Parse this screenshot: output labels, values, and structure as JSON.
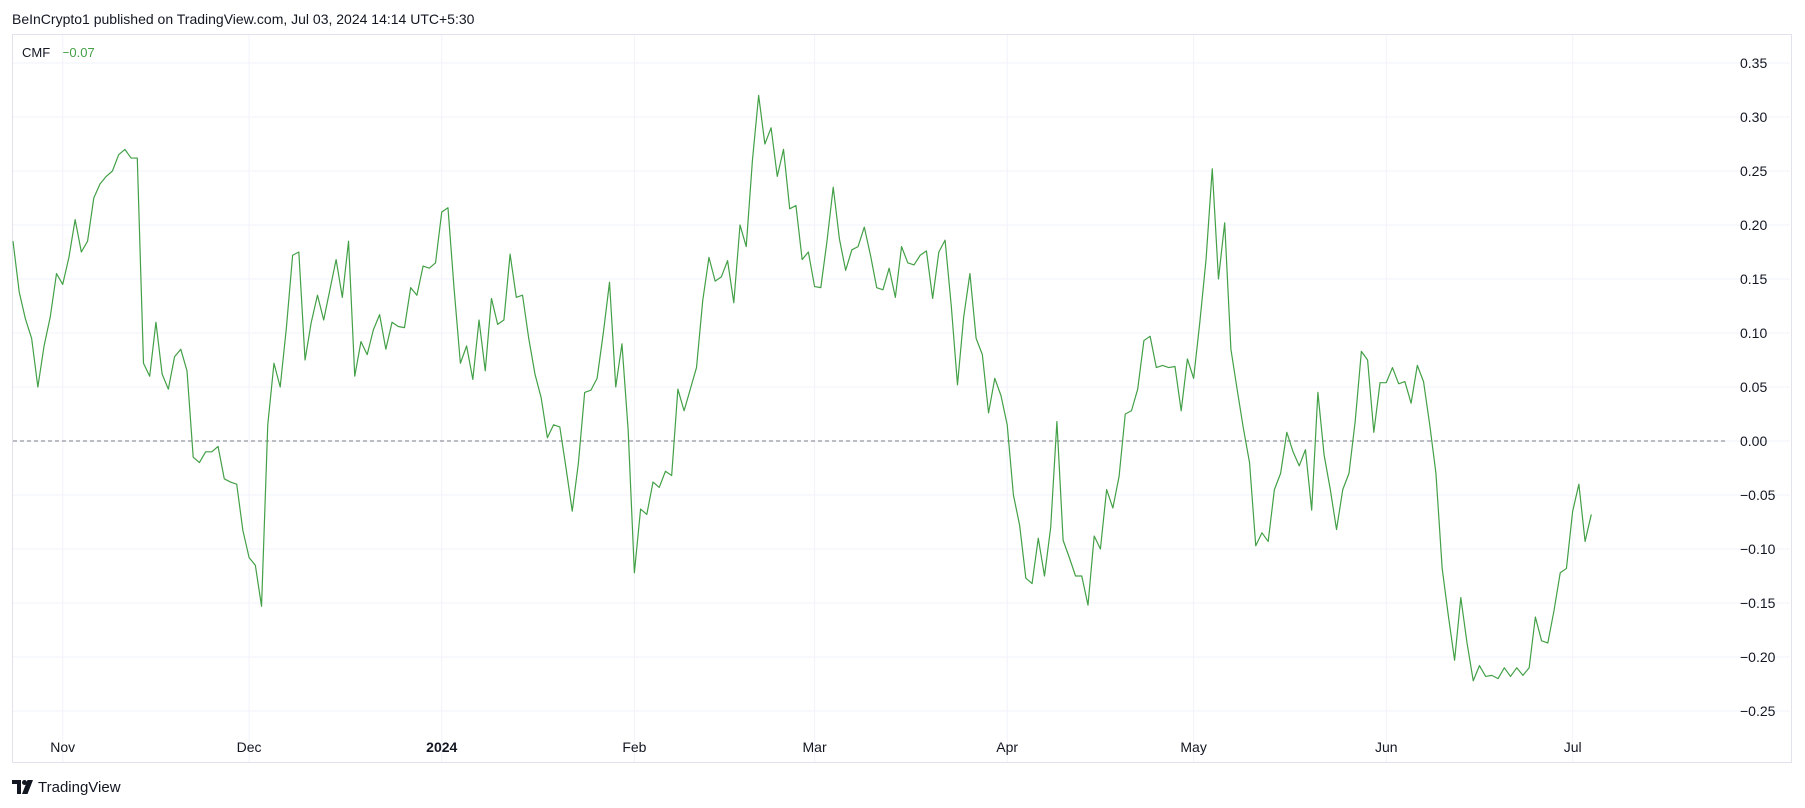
{
  "header": {
    "text": "BeInCrypto1 published on TradingView.com, Jul 03, 2024 14:14 UTC+5:30"
  },
  "legend": {
    "name": "CMF",
    "value": "−0.07",
    "color": "#43a047"
  },
  "footer": {
    "brand": "TradingView",
    "logo_icon": "tradingview-logo-icon"
  },
  "chart_data": {
    "type": "line",
    "ylim": [
      -0.275,
      0.375
    ],
    "y_ticks": [
      "0.35",
      "0.30",
      "0.25",
      "0.20",
      "0.15",
      "0.10",
      "0.05",
      "0.00",
      "−0.05",
      "−0.10",
      "−0.15",
      "−0.20",
      "−0.25"
    ],
    "y_tick_values": [
      0.35,
      0.3,
      0.25,
      0.2,
      0.15,
      0.1,
      0.05,
      0.0,
      -0.05,
      -0.1,
      -0.15,
      -0.2,
      -0.25
    ],
    "x_ticks": [
      {
        "label": "Nov",
        "date": "2023-11-01",
        "bold": false
      },
      {
        "label": "Dec",
        "date": "2023-12-01",
        "bold": false
      },
      {
        "label": "2024",
        "date": "2024-01-01",
        "bold": true
      },
      {
        "label": "Feb",
        "date": "2024-02-01",
        "bold": false
      },
      {
        "label": "Mar",
        "date": "2024-03-01",
        "bold": false
      },
      {
        "label": "Apr",
        "date": "2024-04-01",
        "bold": false
      },
      {
        "label": "May",
        "date": "2024-05-01",
        "bold": false
      },
      {
        "label": "Jun",
        "date": "2024-06-01",
        "bold": false
      },
      {
        "label": "Jul",
        "date": "2024-07-01",
        "bold": false
      }
    ],
    "xlim": [
      "2023-10-24",
      "2024-07-26"
    ],
    "baseline": 0,
    "grid": true,
    "series": [
      {
        "color": "#43a047",
        "points": [
          [
            "2023-10-24",
            0.185
          ],
          [
            "2023-10-25",
            0.138
          ],
          [
            "2023-10-26",
            0.113
          ],
          [
            "2023-10-27",
            0.095
          ],
          [
            "2023-10-28",
            0.05
          ],
          [
            "2023-10-29",
            0.088
          ],
          [
            "2023-10-30",
            0.115
          ],
          [
            "2023-10-31",
            0.155
          ],
          [
            "2023-11-01",
            0.145
          ],
          [
            "2023-11-02",
            0.17
          ],
          [
            "2023-11-03",
            0.205
          ],
          [
            "2023-11-04",
            0.175
          ],
          [
            "2023-11-05",
            0.185
          ],
          [
            "2023-11-06",
            0.225
          ],
          [
            "2023-11-07",
            0.238
          ],
          [
            "2023-11-08",
            0.245
          ],
          [
            "2023-11-09",
            0.25
          ],
          [
            "2023-11-10",
            0.265
          ],
          [
            "2023-11-11",
            0.27
          ],
          [
            "2023-11-12",
            0.262
          ],
          [
            "2023-11-13",
            0.262
          ],
          [
            "2023-11-14",
            0.072
          ],
          [
            "2023-11-15",
            0.06
          ],
          [
            "2023-11-16",
            0.11
          ],
          [
            "2023-11-17",
            0.062
          ],
          [
            "2023-11-18",
            0.048
          ],
          [
            "2023-11-19",
            0.078
          ],
          [
            "2023-11-20",
            0.085
          ],
          [
            "2023-11-21",
            0.065
          ],
          [
            "2023-11-22",
            -0.015
          ],
          [
            "2023-11-23",
            -0.02
          ],
          [
            "2023-11-24",
            -0.01
          ],
          [
            "2023-11-25",
            -0.01
          ],
          [
            "2023-11-26",
            -0.005
          ],
          [
            "2023-11-27",
            -0.035
          ],
          [
            "2023-11-28",
            -0.038
          ],
          [
            "2023-11-29",
            -0.04
          ],
          [
            "2023-11-30",
            -0.083
          ],
          [
            "2023-12-01",
            -0.108
          ],
          [
            "2023-12-02",
            -0.115
          ],
          [
            "2023-12-03",
            -0.153
          ],
          [
            "2023-12-04",
            0.015
          ],
          [
            "2023-12-05",
            0.072
          ],
          [
            "2023-12-06",
            0.05
          ],
          [
            "2023-12-07",
            0.105
          ],
          [
            "2023-12-08",
            0.172
          ],
          [
            "2023-12-09",
            0.175
          ],
          [
            "2023-12-10",
            0.075
          ],
          [
            "2023-12-11",
            0.11
          ],
          [
            "2023-12-12",
            0.135
          ],
          [
            "2023-12-13",
            0.112
          ],
          [
            "2023-12-14",
            0.14
          ],
          [
            "2023-12-15",
            0.168
          ],
          [
            "2023-12-16",
            0.133
          ],
          [
            "2023-12-17",
            0.185
          ],
          [
            "2023-12-18",
            0.06
          ],
          [
            "2023-12-19",
            0.092
          ],
          [
            "2023-12-20",
            0.08
          ],
          [
            "2023-12-21",
            0.103
          ],
          [
            "2023-12-22",
            0.117
          ],
          [
            "2023-12-23",
            0.085
          ],
          [
            "2023-12-24",
            0.11
          ],
          [
            "2023-12-25",
            0.106
          ],
          [
            "2023-12-26",
            0.105
          ],
          [
            "2023-12-27",
            0.142
          ],
          [
            "2023-12-28",
            0.135
          ],
          [
            "2023-12-29",
            0.162
          ],
          [
            "2023-12-30",
            0.16
          ],
          [
            "2023-12-31",
            0.165
          ],
          [
            "2024-01-01",
            0.212
          ],
          [
            "2024-01-02",
            0.216
          ],
          [
            "2024-01-03",
            0.14
          ],
          [
            "2024-01-04",
            0.072
          ],
          [
            "2024-01-05",
            0.088
          ],
          [
            "2024-01-06",
            0.057
          ],
          [
            "2024-01-07",
            0.112
          ],
          [
            "2024-01-08",
            0.065
          ],
          [
            "2024-01-09",
            0.132
          ],
          [
            "2024-01-10",
            0.108
          ],
          [
            "2024-01-11",
            0.112
          ],
          [
            "2024-01-12",
            0.173
          ],
          [
            "2024-01-13",
            0.133
          ],
          [
            "2024-01-14",
            0.135
          ],
          [
            "2024-01-15",
            0.095
          ],
          [
            "2024-01-16",
            0.062
          ],
          [
            "2024-01-17",
            0.04
          ],
          [
            "2024-01-18",
            0.003
          ],
          [
            "2024-01-19",
            0.015
          ],
          [
            "2024-01-20",
            0.013
          ],
          [
            "2024-01-21",
            -0.025
          ],
          [
            "2024-01-22",
            -0.065
          ],
          [
            "2024-01-23",
            -0.02
          ],
          [
            "2024-01-24",
            0.045
          ],
          [
            "2024-01-25",
            0.047
          ],
          [
            "2024-01-26",
            0.058
          ],
          [
            "2024-01-27",
            0.1
          ],
          [
            "2024-01-28",
            0.147
          ],
          [
            "2024-01-29",
            0.05
          ],
          [
            "2024-01-30",
            0.09
          ],
          [
            "2024-01-31",
            0.01
          ],
          [
            "2024-02-01",
            -0.122
          ],
          [
            "2024-02-02",
            -0.063
          ],
          [
            "2024-02-03",
            -0.068
          ],
          [
            "2024-02-04",
            -0.038
          ],
          [
            "2024-02-05",
            -0.043
          ],
          [
            "2024-02-06",
            -0.028
          ],
          [
            "2024-02-07",
            -0.032
          ],
          [
            "2024-02-08",
            0.048
          ],
          [
            "2024-02-09",
            0.028
          ],
          [
            "2024-02-10",
            0.048
          ],
          [
            "2024-02-11",
            0.068
          ],
          [
            "2024-02-12",
            0.13
          ],
          [
            "2024-02-13",
            0.17
          ],
          [
            "2024-02-14",
            0.148
          ],
          [
            "2024-02-15",
            0.152
          ],
          [
            "2024-02-16",
            0.167
          ],
          [
            "2024-02-17",
            0.128
          ],
          [
            "2024-02-18",
            0.2
          ],
          [
            "2024-02-19",
            0.18
          ],
          [
            "2024-02-20",
            0.26
          ],
          [
            "2024-02-21",
            0.32
          ],
          [
            "2024-02-22",
            0.275
          ],
          [
            "2024-02-23",
            0.29
          ],
          [
            "2024-02-24",
            0.245
          ],
          [
            "2024-02-25",
            0.27
          ],
          [
            "2024-02-26",
            0.215
          ],
          [
            "2024-02-27",
            0.218
          ],
          [
            "2024-02-28",
            0.168
          ],
          [
            "2024-02-29",
            0.175
          ],
          [
            "2024-03-01",
            0.143
          ],
          [
            "2024-03-02",
            0.142
          ],
          [
            "2024-03-03",
            0.185
          ],
          [
            "2024-03-04",
            0.235
          ],
          [
            "2024-03-05",
            0.187
          ],
          [
            "2024-03-06",
            0.158
          ],
          [
            "2024-03-07",
            0.177
          ],
          [
            "2024-03-08",
            0.18
          ],
          [
            "2024-03-09",
            0.198
          ],
          [
            "2024-03-10",
            0.172
          ],
          [
            "2024-03-11",
            0.142
          ],
          [
            "2024-03-12",
            0.14
          ],
          [
            "2024-03-13",
            0.16
          ],
          [
            "2024-03-14",
            0.133
          ],
          [
            "2024-03-15",
            0.18
          ],
          [
            "2024-03-16",
            0.165
          ],
          [
            "2024-03-17",
            0.163
          ],
          [
            "2024-03-18",
            0.172
          ],
          [
            "2024-03-19",
            0.176
          ],
          [
            "2024-03-20",
            0.132
          ],
          [
            "2024-03-21",
            0.175
          ],
          [
            "2024-03-22",
            0.186
          ],
          [
            "2024-03-23",
            0.125
          ],
          [
            "2024-03-24",
            0.052
          ],
          [
            "2024-03-25",
            0.115
          ],
          [
            "2024-03-26",
            0.155
          ],
          [
            "2024-03-27",
            0.095
          ],
          [
            "2024-03-28",
            0.08
          ],
          [
            "2024-03-29",
            0.026
          ],
          [
            "2024-03-30",
            0.058
          ],
          [
            "2024-03-31",
            0.042
          ],
          [
            "2024-04-01",
            0.015
          ],
          [
            "2024-04-02",
            -0.05
          ],
          [
            "2024-04-03",
            -0.078
          ],
          [
            "2024-04-04",
            -0.127
          ],
          [
            "2024-04-05",
            -0.132
          ],
          [
            "2024-04-06",
            -0.09
          ],
          [
            "2024-04-07",
            -0.125
          ],
          [
            "2024-04-08",
            -0.08
          ],
          [
            "2024-04-09",
            0.018
          ],
          [
            "2024-04-10",
            -0.092
          ],
          [
            "2024-04-11",
            -0.108
          ],
          [
            "2024-04-12",
            -0.125
          ],
          [
            "2024-04-13",
            -0.125
          ],
          [
            "2024-04-14",
            -0.152
          ],
          [
            "2024-04-15",
            -0.088
          ],
          [
            "2024-04-16",
            -0.1
          ],
          [
            "2024-04-17",
            -0.045
          ],
          [
            "2024-04-18",
            -0.062
          ],
          [
            "2024-04-19",
            -0.033
          ],
          [
            "2024-04-20",
            0.025
          ],
          [
            "2024-04-21",
            0.028
          ],
          [
            "2024-04-22",
            0.048
          ],
          [
            "2024-04-23",
            0.093
          ],
          [
            "2024-04-24",
            0.097
          ],
          [
            "2024-04-25",
            0.068
          ],
          [
            "2024-04-26",
            0.07
          ],
          [
            "2024-04-27",
            0.068
          ],
          [
            "2024-04-28",
            0.069
          ],
          [
            "2024-04-29",
            0.028
          ],
          [
            "2024-04-30",
            0.076
          ],
          [
            "2024-05-01",
            0.058
          ],
          [
            "2024-05-02",
            0.11
          ],
          [
            "2024-05-03",
            0.168
          ],
          [
            "2024-05-04",
            0.252
          ],
          [
            "2024-05-05",
            0.15
          ],
          [
            "2024-05-06",
            0.202
          ],
          [
            "2024-05-07",
            0.085
          ],
          [
            "2024-05-08",
            0.048
          ],
          [
            "2024-05-09",
            0.012
          ],
          [
            "2024-05-10",
            -0.02
          ],
          [
            "2024-05-11",
            -0.097
          ],
          [
            "2024-05-12",
            -0.085
          ],
          [
            "2024-05-13",
            -0.093
          ],
          [
            "2024-05-14",
            -0.045
          ],
          [
            "2024-05-15",
            -0.03
          ],
          [
            "2024-05-16",
            0.008
          ],
          [
            "2024-05-17",
            -0.01
          ],
          [
            "2024-05-18",
            -0.023
          ],
          [
            "2024-05-19",
            -0.008
          ],
          [
            "2024-05-20",
            -0.064
          ],
          [
            "2024-05-21",
            0.045
          ],
          [
            "2024-05-22",
            -0.013
          ],
          [
            "2024-05-23",
            -0.045
          ],
          [
            "2024-05-24",
            -0.082
          ],
          [
            "2024-05-25",
            -0.045
          ],
          [
            "2024-05-26",
            -0.03
          ],
          [
            "2024-05-27",
            0.018
          ],
          [
            "2024-05-28",
            0.083
          ],
          [
            "2024-05-29",
            0.075
          ],
          [
            "2024-05-30",
            0.008
          ],
          [
            "2024-05-31",
            0.054
          ],
          [
            "2024-06-01",
            0.054
          ],
          [
            "2024-06-02",
            0.068
          ],
          [
            "2024-06-03",
            0.053
          ],
          [
            "2024-06-04",
            0.055
          ],
          [
            "2024-06-05",
            0.035
          ],
          [
            "2024-06-06",
            0.07
          ],
          [
            "2024-06-07",
            0.055
          ],
          [
            "2024-06-08",
            0.015
          ],
          [
            "2024-06-09",
            -0.03
          ],
          [
            "2024-06-10",
            -0.118
          ],
          [
            "2024-06-11",
            -0.162
          ],
          [
            "2024-06-12",
            -0.203
          ],
          [
            "2024-06-13",
            -0.145
          ],
          [
            "2024-06-14",
            -0.187
          ],
          [
            "2024-06-15",
            -0.222
          ],
          [
            "2024-06-16",
            -0.208
          ],
          [
            "2024-06-17",
            -0.218
          ],
          [
            "2024-06-18",
            -0.217
          ],
          [
            "2024-06-19",
            -0.22
          ],
          [
            "2024-06-20",
            -0.21
          ],
          [
            "2024-06-21",
            -0.218
          ],
          [
            "2024-06-22",
            -0.21
          ],
          [
            "2024-06-23",
            -0.217
          ],
          [
            "2024-06-24",
            -0.21
          ],
          [
            "2024-06-25",
            -0.163
          ],
          [
            "2024-06-26",
            -0.185
          ],
          [
            "2024-06-27",
            -0.187
          ],
          [
            "2024-06-28",
            -0.157
          ],
          [
            "2024-06-29",
            -0.122
          ],
          [
            "2024-06-30",
            -0.118
          ],
          [
            "2024-07-01",
            -0.065
          ],
          [
            "2024-07-02",
            -0.04
          ],
          [
            "2024-07-03",
            -0.093
          ],
          [
            "2024-07-04",
            -0.068
          ]
        ]
      }
    ]
  }
}
